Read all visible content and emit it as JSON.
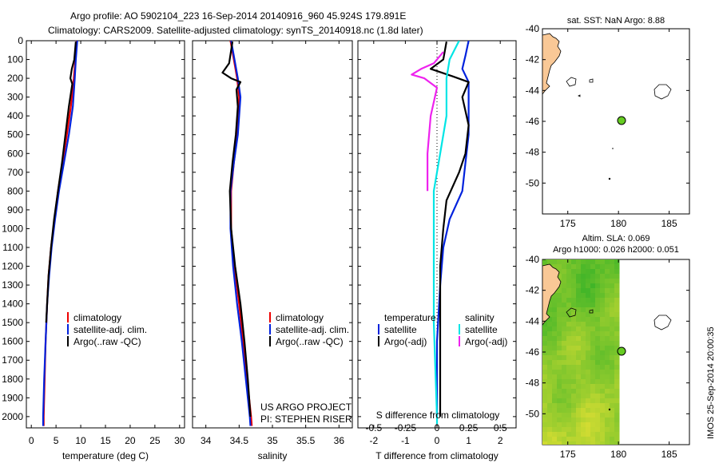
{
  "header": {
    "line1": "Argo profile: AO 5902104_223 16-Sep-2014 20140916_960 45.924S 179.891E",
    "line2": "Climatology: CARS2009. Satellite-adjusted climatology: synTS_20140918.nc (1.8d later)"
  },
  "colors": {
    "climatology": "#ee0000",
    "satellite": "#0022dd",
    "argo": "#000000",
    "sal_satellite": "#00e5e5",
    "sal_argo": "#ee22ee",
    "land": "#f9c896",
    "float_marker": "#66cc22",
    "sla_green": "#2fbf2f"
  },
  "icons": {
    "float_marker": "green-circle",
    "coast": "coastline-outline"
  },
  "panels": {
    "temperature": {
      "xlabel": "temperature (deg C)",
      "legend": [
        "climatology",
        "satellite-adj. clim.",
        "Argo(..raw -QC)"
      ]
    },
    "salinity": {
      "xlabel": "salinity",
      "legend": [
        "climatology",
        "satellite-adj. clim.",
        "Argo(..raw -QC)"
      ],
      "credit1": "US ARGO PROJECT",
      "credit2": "PI: STEPHEN RISER"
    },
    "difference": {
      "xlabel": "T difference from climatology",
      "s_label": "S difference from climatology",
      "legend_head_t": "temperature",
      "legend_head_s": "salinity",
      "legend_t": [
        "satellite",
        "Argo(-adj)"
      ],
      "legend_s": [
        "satellite",
        "Argo(-adj)"
      ]
    },
    "map_sst": {
      "title": "sat. SST: NaN Argo: 8.88"
    },
    "map_sla": {
      "title1": "Altim. SLA: 0.069",
      "title2": "Argo h1000: 0.026 h2000: 0.051"
    }
  },
  "side_text": "IMOS 25-Sep-2014 20:00:35",
  "chart_data": [
    {
      "type": "line",
      "name": "temperature-profile",
      "xlabel": "temperature (deg C)",
      "ylabel": "",
      "xlim": [
        -1,
        31
      ],
      "ylim": [
        2060,
        0
      ],
      "xticks": [
        0,
        5,
        10,
        15,
        20,
        25,
        30
      ],
      "yticks": [
        0,
        100,
        200,
        300,
        400,
        500,
        600,
        700,
        800,
        900,
        1000,
        1100,
        1200,
        1300,
        1400,
        1500,
        1600,
        1700,
        1800,
        1900,
        2000
      ],
      "series": [
        {
          "name": "climatology",
          "color": "#ee0000",
          "points": [
            [
              9.2,
              0
            ],
            [
              8.9,
              100
            ],
            [
              8.6,
              200
            ],
            [
              8.0,
              350
            ],
            [
              7.2,
              500
            ],
            [
              6.3,
              650
            ],
            [
              5.4,
              800
            ],
            [
              4.7,
              950
            ],
            [
              4.0,
              1100
            ],
            [
              3.5,
              1250
            ],
            [
              3.2,
              1400
            ],
            [
              2.9,
              1600
            ],
            [
              2.7,
              1800
            ],
            [
              2.5,
              2000
            ],
            [
              2.5,
              2050
            ]
          ]
        },
        {
          "name": "satellite-adj. clim.",
          "color": "#0022dd",
          "points": [
            [
              9.3,
              0
            ],
            [
              9.0,
              100
            ],
            [
              8.8,
              200
            ],
            [
              8.4,
              350
            ],
            [
              7.6,
              500
            ],
            [
              6.6,
              650
            ],
            [
              5.6,
              800
            ],
            [
              4.8,
              950
            ],
            [
              4.1,
              1100
            ],
            [
              3.6,
              1250
            ],
            [
              3.2,
              1400
            ],
            [
              2.9,
              1600
            ],
            [
              2.6,
              1800
            ],
            [
              2.4,
              2000
            ],
            [
              2.4,
              2050
            ]
          ]
        },
        {
          "name": "Argo(..raw -QC)",
          "color": "#000000",
          "points": [
            [
              9.0,
              5
            ],
            [
              8.7,
              100
            ],
            [
              8.2,
              150
            ],
            [
              7.9,
              200
            ],
            [
              8.3,
              230
            ],
            [
              7.6,
              350
            ],
            [
              6.9,
              500
            ],
            [
              6.2,
              650
            ],
            [
              5.4,
              800
            ],
            [
              4.6,
              950
            ],
            [
              4.0,
              1100
            ],
            [
              3.5,
              1250
            ],
            [
              3.2,
              1400
            ],
            [
              3.0,
              1500
            ]
          ]
        }
      ]
    },
    {
      "type": "line",
      "name": "salinity-profile",
      "xlabel": "salinity",
      "ylabel": "",
      "xlim": [
        33.8,
        36.2
      ],
      "ylim": [
        2060,
        0
      ],
      "xticks": [
        34,
        34.5,
        35,
        35.5,
        36
      ],
      "series": [
        {
          "name": "climatology",
          "color": "#ee0000",
          "points": [
            [
              34.37,
              0
            ],
            [
              34.42,
              100
            ],
            [
              34.47,
              200
            ],
            [
              34.5,
              300
            ],
            [
              34.47,
              500
            ],
            [
              34.42,
              650
            ],
            [
              34.38,
              800
            ],
            [
              34.38,
              1000
            ],
            [
              34.43,
              1200
            ],
            [
              34.5,
              1400
            ],
            [
              34.56,
              1600
            ],
            [
              34.62,
              1800
            ],
            [
              34.68,
              2000
            ],
            [
              34.69,
              2050
            ]
          ]
        },
        {
          "name": "satellite-adj. clim.",
          "color": "#0022dd",
          "points": [
            [
              34.38,
              0
            ],
            [
              34.43,
              100
            ],
            [
              34.48,
              200
            ],
            [
              34.52,
              300
            ],
            [
              34.48,
              500
            ],
            [
              34.42,
              650
            ],
            [
              34.37,
              800
            ],
            [
              34.37,
              1000
            ],
            [
              34.41,
              1200
            ],
            [
              34.47,
              1400
            ],
            [
              34.54,
              1600
            ],
            [
              34.6,
              1800
            ],
            [
              34.66,
              2000
            ],
            [
              34.67,
              2050
            ]
          ]
        },
        {
          "name": "Argo(..raw -QC)",
          "color": "#000000",
          "points": [
            [
              34.4,
              5
            ],
            [
              34.35,
              120
            ],
            [
              34.25,
              170
            ],
            [
              34.38,
              200
            ],
            [
              34.52,
              220
            ],
            [
              34.46,
              260
            ],
            [
              34.48,
              350
            ],
            [
              34.45,
              500
            ],
            [
              34.4,
              650
            ],
            [
              34.36,
              800
            ],
            [
              34.38,
              1000
            ],
            [
              34.44,
              1200
            ],
            [
              34.52,
              1400
            ],
            [
              34.58,
              1600
            ],
            [
              34.63,
              1800
            ],
            [
              34.67,
              2000
            ]
          ]
        }
      ]
    },
    {
      "type": "line",
      "name": "difference-profile",
      "xlabel": "T difference from climatology",
      "ylabel": "",
      "xlim": [
        -2.5,
        2.5
      ],
      "ylim": [
        2060,
        0
      ],
      "xticks": [
        -2,
        -1,
        0,
        1,
        2
      ],
      "s_xticks": [
        -0.5,
        -0.25,
        0,
        0.25,
        0.5
      ],
      "series": [
        {
          "name": "T satellite",
          "color": "#0022dd",
          "points": [
            [
              1.0,
              0
            ],
            [
              0.9,
              80
            ],
            [
              0.8,
              150
            ],
            [
              1.0,
              220
            ],
            [
              1.0,
              300
            ],
            [
              1.0,
              500
            ],
            [
              0.9,
              650
            ],
            [
              0.8,
              800
            ],
            [
              0.4,
              950
            ],
            [
              0.2,
              1100
            ],
            [
              0.1,
              1300
            ],
            [
              0.0,
              1600
            ],
            [
              0.0,
              2000
            ]
          ]
        },
        {
          "name": "T Argo(-adj)",
          "color": "#000000",
          "points": [
            [
              0.3,
              5
            ],
            [
              0.2,
              100
            ],
            [
              -0.2,
              150
            ],
            [
              0.5,
              190
            ],
            [
              1.0,
              220
            ],
            [
              0.8,
              300
            ],
            [
              1.0,
              450
            ],
            [
              0.9,
              600
            ],
            [
              0.7,
              700
            ],
            [
              0.3,
              850
            ],
            [
              0.2,
              1000
            ],
            [
              0.1,
              1200
            ],
            [
              0.1,
              1500
            ],
            [
              0.1,
              2000
            ]
          ]
        },
        {
          "name": "S satellite",
          "color": "#00e5e5",
          "points": [
            [
              0.7,
              0
            ],
            [
              0.4,
              100
            ],
            [
              0.3,
              200
            ],
            [
              0.3,
              400
            ],
            [
              0.1,
              600
            ],
            [
              -0.1,
              800
            ],
            [
              -0.1,
              1000
            ],
            [
              -0.1,
              1200
            ],
            [
              -0.1,
              1500
            ],
            [
              0.0,
              2000
            ],
            [
              0.0,
              2040
            ]
          ]
        },
        {
          "name": "S Argo(-adj)",
          "color": "#ee22ee",
          "points": [
            [
              0.2,
              60
            ],
            [
              -0.1,
              120
            ],
            [
              -0.5,
              150
            ],
            [
              -0.8,
              180
            ],
            [
              -0.4,
              200
            ],
            [
              0.0,
              250
            ],
            [
              -0.2,
              400
            ],
            [
              -0.3,
              600
            ],
            [
              -0.3,
              800
            ]
          ]
        }
      ]
    },
    {
      "type": "scatter",
      "name": "sst-map",
      "title": "sat. SST: NaN Argo: 8.88",
      "xlim": [
        172.5,
        187
      ],
      "ylim": [
        -52,
        -40
      ],
      "xticks": [
        175,
        180,
        185
      ],
      "yticks": [
        -40,
        -42,
        -44,
        -46,
        -48,
        -50
      ],
      "float": {
        "lon": 179.891,
        "lat": -45.924
      }
    },
    {
      "type": "heatmap",
      "name": "sla-map",
      "title": "Altim. SLA: 0.069",
      "xlim": [
        172.5,
        187
      ],
      "ylim": [
        -52,
        -40
      ],
      "xticks": [
        175,
        180,
        185
      ],
      "yticks": [
        -40,
        -42,
        -44,
        -46,
        -48,
        -50
      ],
      "data_lon_max": 180,
      "float": {
        "lon": 179.891,
        "lat": -45.924
      }
    }
  ]
}
